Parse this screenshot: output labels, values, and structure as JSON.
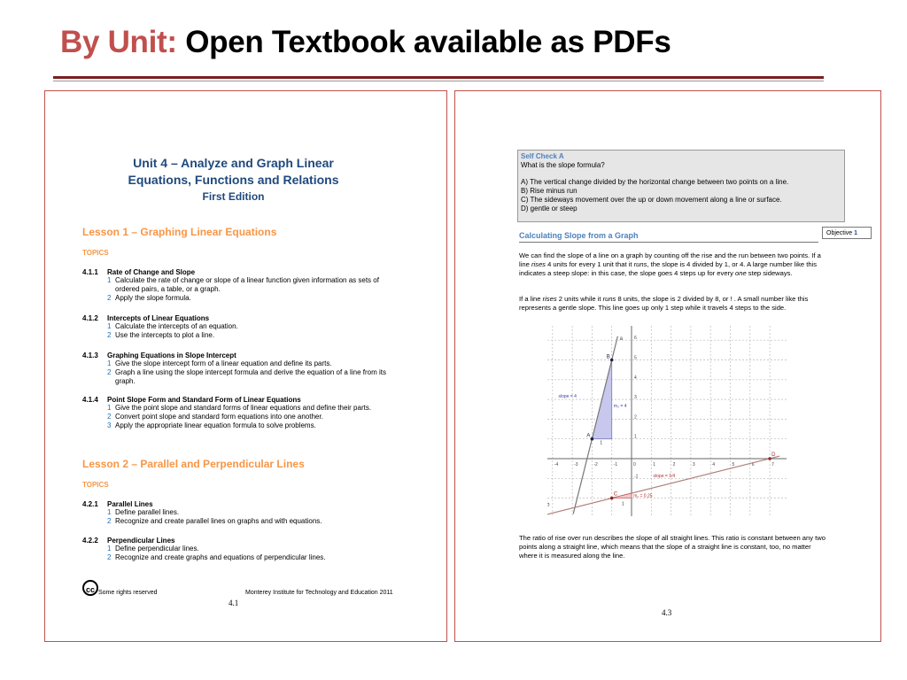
{
  "header": {
    "unit_label": "By Unit:",
    "title": "Open Textbook available as PDFs"
  },
  "left_page": {
    "unit_title_1": "Unit 4 – Analyze and Graph Linear",
    "unit_title_2": "Equations, Functions and Relations",
    "edition": "First Edition",
    "lessons": [
      {
        "title": "Lesson 1 – Graphing Linear Equations",
        "topics_label": "TOPICS",
        "sections": [
          {
            "num": "4.1.1",
            "title": "Rate of Change and Slope",
            "items": [
              {
                "n": "1",
                "text": "Calculate the rate of change or slope of a linear function given information as sets of ordered pairs, a table, or a graph."
              },
              {
                "n": "2",
                "text": "Apply the slope formula."
              }
            ]
          },
          {
            "num": "4.1.2",
            "title": "Intercepts of Linear Equations",
            "items": [
              {
                "n": "1",
                "text": "Calculate the intercepts of an equation."
              },
              {
                "n": "2",
                "text": "Use the intercepts to plot a line."
              }
            ]
          },
          {
            "num": "4.1.3",
            "title": "Graphing Equations in Slope Intercept",
            "items": [
              {
                "n": "1",
                "text": "Give the slope intercept form of a linear equation and define its parts."
              },
              {
                "n": "2",
                "text": "Graph a line using the slope intercept formula and derive the equation of a line from its graph."
              }
            ]
          },
          {
            "num": "4.1.4",
            "title": "Point Slope Form and Standard Form of Linear Equations",
            "items": [
              {
                "n": "1",
                "text": "Give the point slope and standard forms of linear equations and define their parts."
              },
              {
                "n": "2",
                "text": "Convert point slope and standard form equations into one another."
              },
              {
                "n": "3",
                "text": "Apply the appropriate linear equation formula to solve problems."
              }
            ]
          }
        ]
      },
      {
        "title": "Lesson 2 – Parallel and Perpendicular Lines",
        "topics_label": "TOPICS",
        "sections": [
          {
            "num": "4.2.1",
            "title": "Parallel Lines",
            "items": [
              {
                "n": "1",
                "text": "Define parallel lines."
              },
              {
                "n": "2",
                "text": "Recognize and create parallel lines on graphs and with equations."
              }
            ]
          },
          {
            "num": "4.2.2",
            "title": "Perpendicular Lines",
            "items": [
              {
                "n": "1",
                "text": "Define perpendicular lines."
              },
              {
                "n": "2",
                "text": "Recognize and create graphs and equations of perpendicular lines."
              }
            ]
          }
        ]
      }
    ],
    "footer_left": "Some rights reserved",
    "footer_right": "Monterey Institute for Technology and Education 2011",
    "page_number": "4.1",
    "cc_logo": "cc"
  },
  "right_page": {
    "self_check": {
      "title": "Self Check A",
      "question": "What is the slope formula?",
      "options": [
        "A) The vertical change divided by the horizontal change between two points on a line.",
        "B) Rise minus run",
        "C) The sideways movement over the up or down movement along a line or surface.",
        "D) gentle or steep"
      ]
    },
    "objective": {
      "label": "Objective",
      "num": "1"
    },
    "section_title": "Calculating Slope from a Graph",
    "p1_a": "We can find the slope of a line on a graph by counting off the rise and the run between two points. If a line ",
    "p1_rises": "rises",
    "p1_b": " 4 units for every 1 unit that it ",
    "p1_runs": "runs",
    "p1_c": ", the slope is 4 divided by 1, or 4. A large number like this indicates a steep slope: in this case, the slope goes 4 steps up for every ",
    "p1_one": "one",
    "p1_d": " step sideways.",
    "p2_a": "If a line ",
    "p2_rises": "rises",
    "p2_b": " 2 units while it ",
    "p2_runs": "runs",
    "p2_c": " 8 units, the slope is 2 divided by 8, or !  . A small number like this represents a gentle slope. This line goes up only 1 step while it travels 4 steps to the side.",
    "p3": "The ratio of rise over run describes the slope of all straight lines. This ratio is constant between any two points along a straight line, which means that the slope of a straight line is constant, too, no matter where it is measured along the line.",
    "page_number": "4.3",
    "graph": {
      "x_ticks": [
        "-4",
        "-3",
        "-2",
        "-1",
        "0",
        "1",
        "2",
        "3",
        "4",
        "5",
        "6",
        "7"
      ],
      "y_ticks": [
        "-1",
        "1",
        "2",
        "3",
        "4",
        "5",
        "6"
      ],
      "line_a": {
        "label": "a",
        "slope_label": "slope = 4",
        "m_label": "m₂ = 4",
        "run_label": "1",
        "points": [
          {
            "name": "A",
            "x": -2,
            "y": 1
          },
          {
            "name": "B",
            "x": -1,
            "y": 5
          }
        ],
        "color": "#7b7bbf"
      },
      "line_b": {
        "label": "b",
        "slope_label": "slope = 1/4",
        "m_label": "m₁ = 0.25",
        "run_label": "1",
        "points": [
          {
            "name": "C",
            "x": -1,
            "y": -2
          },
          {
            "name": "D",
            "x": 7,
            "y": 0
          }
        ],
        "color": "#b05050"
      }
    }
  }
}
